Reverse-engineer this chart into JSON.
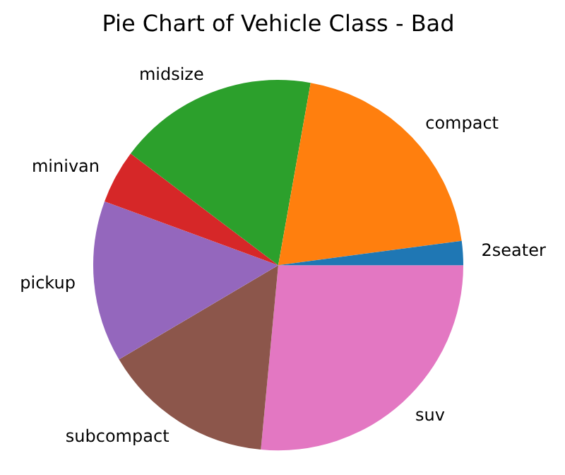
{
  "chart_data": {
    "type": "pie",
    "title": "Pie Chart of Vehicle Class - Bad",
    "categories": [
      "2seater",
      "compact",
      "midsize",
      "minivan",
      "pickup",
      "subcompact",
      "suv"
    ],
    "values": [
      2.1,
      20.1,
      17.5,
      4.7,
      14.1,
      15.0,
      26.5
    ],
    "colors": [
      "#1f77b4",
      "#ff7f0e",
      "#2ca02c",
      "#d62728",
      "#9467bd",
      "#8c564b",
      "#e377c2"
    ]
  }
}
